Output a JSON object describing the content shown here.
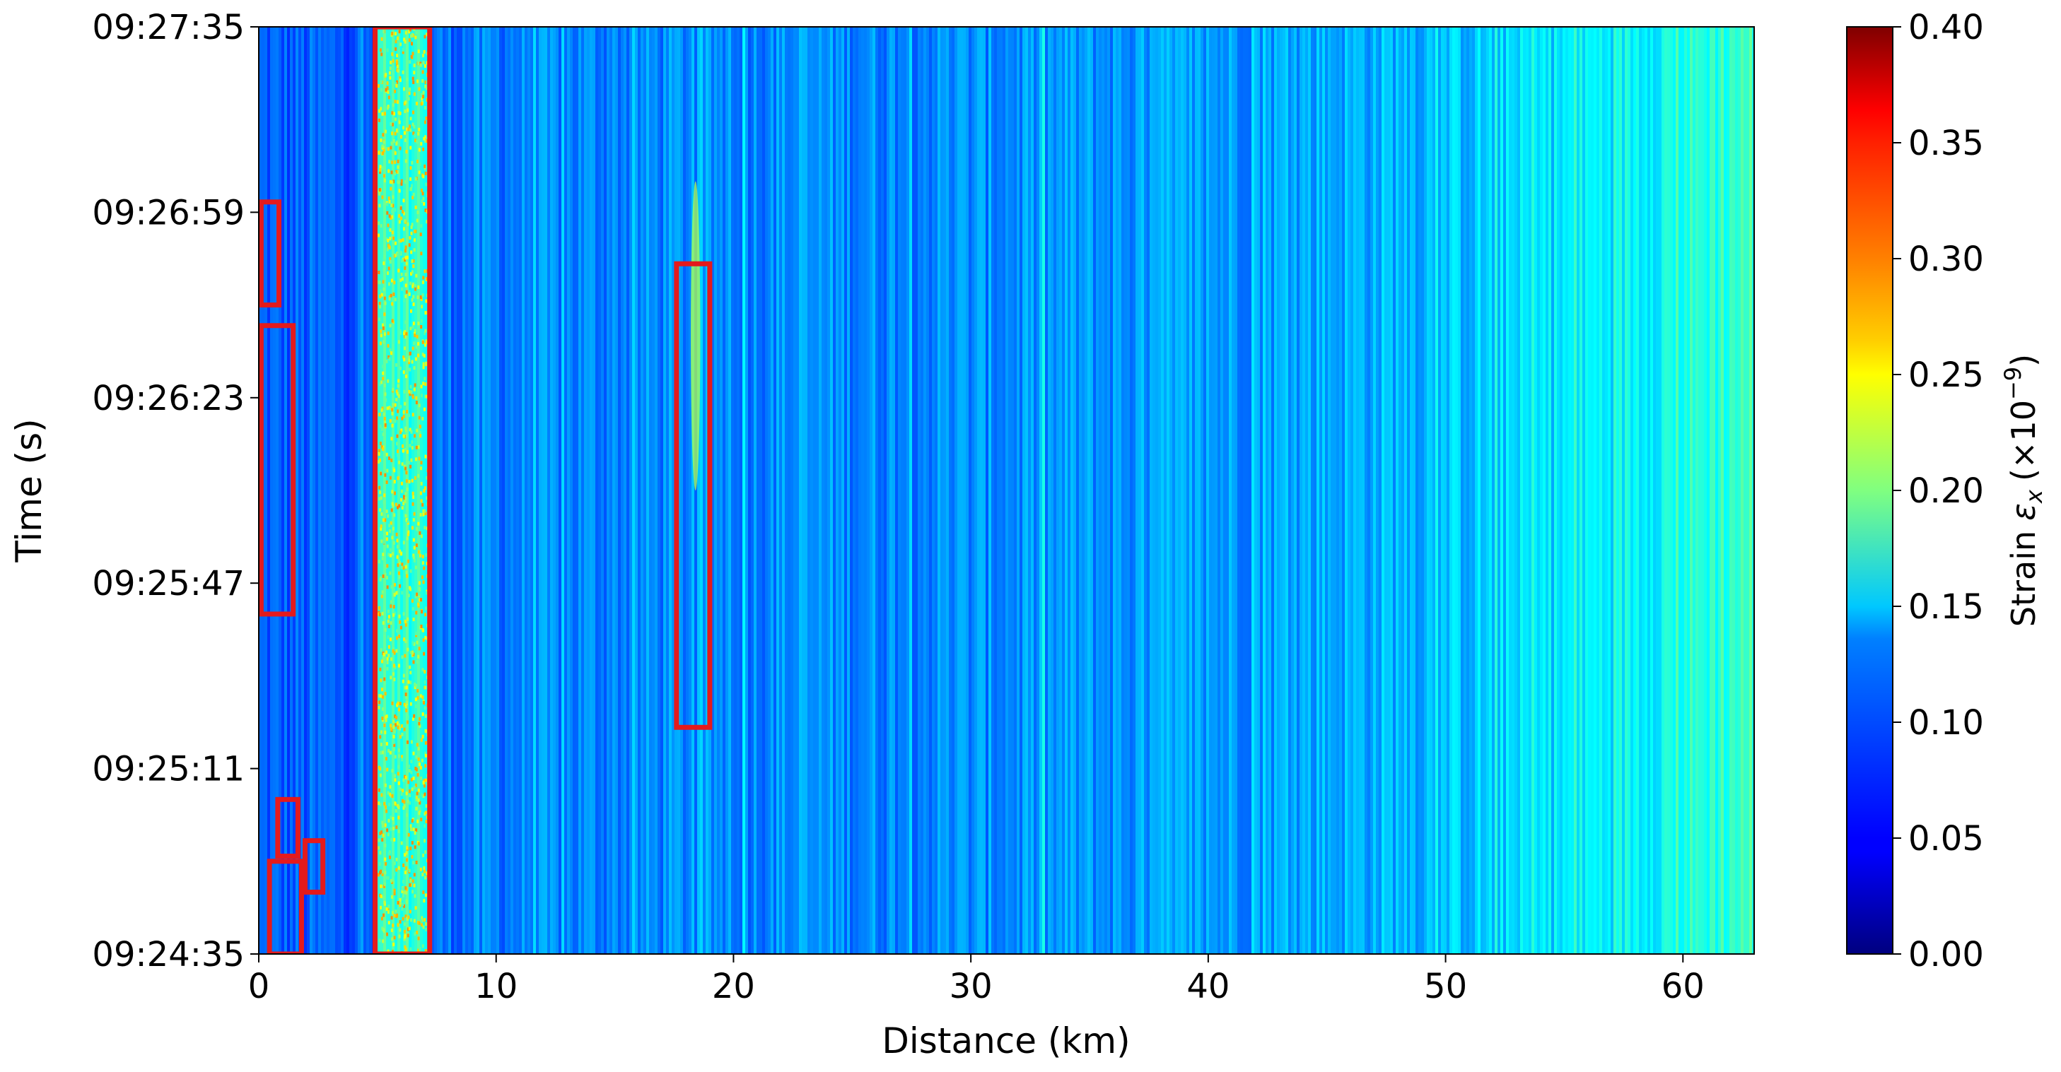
{
  "chart_data": {
    "type": "heatmap",
    "title": "",
    "xlabel": "Distance (km)",
    "ylabel": "Time (s)",
    "xlim": [
      0,
      63
    ],
    "x_ticks": [
      0,
      10,
      20,
      30,
      40,
      50,
      60
    ],
    "x_tick_labels": [
      "0",
      "10",
      "20",
      "30",
      "40",
      "50",
      "60"
    ],
    "y_ticks_seconds": [
      0,
      36,
      72,
      108,
      144,
      180
    ],
    "y_tick_labels": [
      "09:24:35",
      "09:25:11",
      "09:25:47",
      "09:26:23",
      "09:26:59",
      "09:27:35"
    ],
    "ylim_seconds": [
      0,
      180
    ],
    "colorbar": {
      "label": "Strain",
      "label_symbol": "ε",
      "label_subscript": "x",
      "label_unit": "(×10",
      "label_exponent": "−9",
      "label_close": ")",
      "colormap": "jet",
      "range": [
        0.0,
        0.4
      ],
      "ticks": [
        0.0,
        0.05,
        0.1,
        0.15,
        0.2,
        0.25,
        0.3,
        0.35,
        0.4
      ],
      "tick_labels": [
        "0.00",
        "0.05",
        "0.10",
        "0.15",
        "0.20",
        "0.25",
        "0.30",
        "0.35",
        "0.40"
      ]
    },
    "background_trend": [
      {
        "distance_km": 0,
        "strain": 0.085
      },
      {
        "distance_km": 5,
        "strain": 0.085
      },
      {
        "distance_km": 10,
        "strain": 0.1
      },
      {
        "distance_km": 20,
        "strain": 0.105
      },
      {
        "distance_km": 30,
        "strain": 0.105
      },
      {
        "distance_km": 40,
        "strain": 0.11
      },
      {
        "distance_km": 50,
        "strain": 0.125
      },
      {
        "distance_km": 55,
        "strain": 0.14
      },
      {
        "distance_km": 60,
        "strain": 0.16
      },
      {
        "distance_km": 63,
        "strain": 0.175
      }
    ],
    "hot_bands": [
      {
        "x0_km": 5.0,
        "x1_km": 7.2,
        "strain": 0.2
      },
      {
        "x0_km": 18.2,
        "x1_km": 18.6,
        "t0_s": 90,
        "t1_s": 150,
        "strain": 0.22
      }
    ],
    "annotations": [
      {
        "type": "rectangle",
        "color": "#e41a1c",
        "x0_km": 0.1,
        "x1_km": 0.85,
        "t0_s": 126,
        "t1_s": 146
      },
      {
        "type": "rectangle",
        "color": "#e41a1c",
        "x0_km": 0.1,
        "x1_km": 1.45,
        "t0_s": 66,
        "t1_s": 122
      },
      {
        "type": "rectangle",
        "color": "#e41a1c",
        "x0_km": 4.9,
        "x1_km": 7.2,
        "t0_s": 0,
        "t1_s": 180
      },
      {
        "type": "rectangle",
        "color": "#e41a1c",
        "x0_km": 17.6,
        "x1_km": 19.0,
        "t0_s": 44,
        "t1_s": 134
      },
      {
        "type": "rectangle",
        "color": "#e41a1c",
        "x0_km": 0.8,
        "x1_km": 1.65,
        "t0_s": 19,
        "t1_s": 30
      },
      {
        "type": "rectangle",
        "color": "#e41a1c",
        "x0_km": 1.95,
        "x1_km": 2.7,
        "t0_s": 12,
        "t1_s": 22
      },
      {
        "type": "rectangle",
        "color": "#e41a1c",
        "x0_km": 0.45,
        "x1_km": 1.8,
        "t0_s": 0,
        "t1_s": 18
      }
    ]
  }
}
